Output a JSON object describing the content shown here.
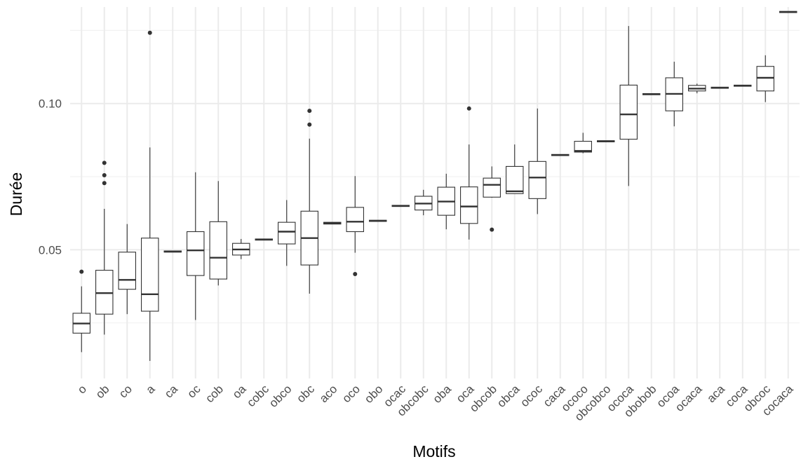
{
  "chart_data": {
    "type": "boxplot",
    "xlabel": "Motifs",
    "ylabel": "Durée",
    "ylim": [
      0.006,
      0.133
    ],
    "yticks": [
      0.05,
      0.1
    ],
    "ytick_labels": [
      "0.05",
      "0.10"
    ],
    "grid": true,
    "categories": [
      "o",
      "ob",
      "co",
      "a",
      "ca",
      "oc",
      "cob",
      "oa",
      "cobc",
      "obco",
      "obc",
      "aco",
      "oco",
      "obo",
      "ocac",
      "obcobc",
      "oba",
      "oca",
      "obcob",
      "obca",
      "ococ",
      "caca",
      "ococo",
      "obcobco",
      "ococa",
      "obobob",
      "ocoa",
      "ocaca",
      "aca",
      "coca",
      "obcoc",
      "cocaca"
    ],
    "boxes": [
      {
        "min": 0.015,
        "q1": 0.0215,
        "median": 0.0248,
        "q3": 0.0283,
        "max": 0.0375,
        "outliers": [
          0.0425
        ]
      },
      {
        "min": 0.021,
        "q1": 0.028,
        "median": 0.0352,
        "q3": 0.043,
        "max": 0.064,
        "outliers": [
          0.0728,
          0.0755,
          0.0797
        ]
      },
      {
        "min": 0.028,
        "q1": 0.0365,
        "median": 0.0397,
        "q3": 0.0492,
        "max": 0.0588,
        "outliers": []
      },
      {
        "min": 0.012,
        "q1": 0.029,
        "median": 0.0348,
        "q3": 0.054,
        "max": 0.085,
        "outliers": [
          0.1242
        ]
      },
      {
        "min": 0.0492,
        "q1": 0.0492,
        "median": 0.0494,
        "q3": 0.0496,
        "max": 0.0496,
        "outliers": []
      },
      {
        "min": 0.026,
        "q1": 0.0412,
        "median": 0.0498,
        "q3": 0.0562,
        "max": 0.0765,
        "outliers": []
      },
      {
        "min": 0.0378,
        "q1": 0.04,
        "median": 0.0473,
        "q3": 0.0596,
        "max": 0.0735,
        "outliers": []
      },
      {
        "min": 0.0468,
        "q1": 0.0482,
        "median": 0.0501,
        "q3": 0.0522,
        "max": 0.0537,
        "outliers": []
      },
      {
        "min": 0.0533,
        "q1": 0.0533,
        "median": 0.0535,
        "q3": 0.0537,
        "max": 0.0537,
        "outliers": []
      },
      {
        "min": 0.0445,
        "q1": 0.052,
        "median": 0.0562,
        "q3": 0.0594,
        "max": 0.067,
        "outliers": []
      },
      {
        "min": 0.035,
        "q1": 0.0448,
        "median": 0.054,
        "q3": 0.0632,
        "max": 0.088,
        "outliers": [
          0.0928,
          0.0975
        ]
      },
      {
        "min": 0.0588,
        "q1": 0.0588,
        "median": 0.0591,
        "q3": 0.0594,
        "max": 0.0594,
        "outliers": []
      },
      {
        "min": 0.049,
        "q1": 0.0562,
        "median": 0.0596,
        "q3": 0.0645,
        "max": 0.0752,
        "outliers": [
          0.0417
        ]
      },
      {
        "min": 0.0597,
        "q1": 0.0597,
        "median": 0.0599,
        "q3": 0.0601,
        "max": 0.0601,
        "outliers": []
      },
      {
        "min": 0.0648,
        "q1": 0.0648,
        "median": 0.065,
        "q3": 0.0652,
        "max": 0.0652,
        "outliers": []
      },
      {
        "min": 0.0618,
        "q1": 0.0636,
        "median": 0.0658,
        "q3": 0.0683,
        "max": 0.0705,
        "outliers": []
      },
      {
        "min": 0.057,
        "q1": 0.0618,
        "median": 0.0665,
        "q3": 0.0714,
        "max": 0.076,
        "outliers": []
      },
      {
        "min": 0.0535,
        "q1": 0.059,
        "median": 0.0648,
        "q3": 0.0715,
        "max": 0.086,
        "outliers": [
          0.0983
        ]
      },
      {
        "min": 0.0678,
        "q1": 0.068,
        "median": 0.0722,
        "q3": 0.0745,
        "max": 0.0785,
        "outliers": [
          0.0569
        ]
      },
      {
        "min": 0.0692,
        "q1": 0.0692,
        "median": 0.07,
        "q3": 0.0785,
        "max": 0.086,
        "outliers": []
      },
      {
        "min": 0.0622,
        "q1": 0.0675,
        "median": 0.0747,
        "q3": 0.0802,
        "max": 0.0983,
        "outliers": []
      },
      {
        "min": 0.0822,
        "q1": 0.0822,
        "median": 0.0824,
        "q3": 0.0826,
        "max": 0.0826,
        "outliers": []
      },
      {
        "min": 0.083,
        "q1": 0.0834,
        "median": 0.0838,
        "q3": 0.0871,
        "max": 0.09,
        "outliers": []
      },
      {
        "min": 0.0869,
        "q1": 0.0869,
        "median": 0.0871,
        "q3": 0.0873,
        "max": 0.0873,
        "outliers": []
      },
      {
        "min": 0.0718,
        "q1": 0.0878,
        "median": 0.0963,
        "q3": 0.1063,
        "max": 0.1265,
        "outliers": []
      },
      {
        "min": 0.103,
        "q1": 0.103,
        "median": 0.1032,
        "q3": 0.1034,
        "max": 0.1034,
        "outliers": []
      },
      {
        "min": 0.0922,
        "q1": 0.0975,
        "median": 0.1033,
        "q3": 0.1088,
        "max": 0.1143,
        "outliers": []
      },
      {
        "min": 0.1035,
        "q1": 0.1043,
        "median": 0.1051,
        "q3": 0.1062,
        "max": 0.1068,
        "outliers": []
      },
      {
        "min": 0.1052,
        "q1": 0.1052,
        "median": 0.1054,
        "q3": 0.1056,
        "max": 0.1056,
        "outliers": []
      },
      {
        "min": 0.1059,
        "q1": 0.1059,
        "median": 0.1061,
        "q3": 0.1063,
        "max": 0.1063,
        "outliers": []
      },
      {
        "min": 0.1005,
        "q1": 0.1043,
        "median": 0.1088,
        "q3": 0.1127,
        "max": 0.1165,
        "outliers": []
      },
      {
        "min": 0.1311,
        "q1": 0.1311,
        "median": 0.1313,
        "q3": 0.1315,
        "max": 0.1315,
        "outliers": []
      }
    ]
  }
}
